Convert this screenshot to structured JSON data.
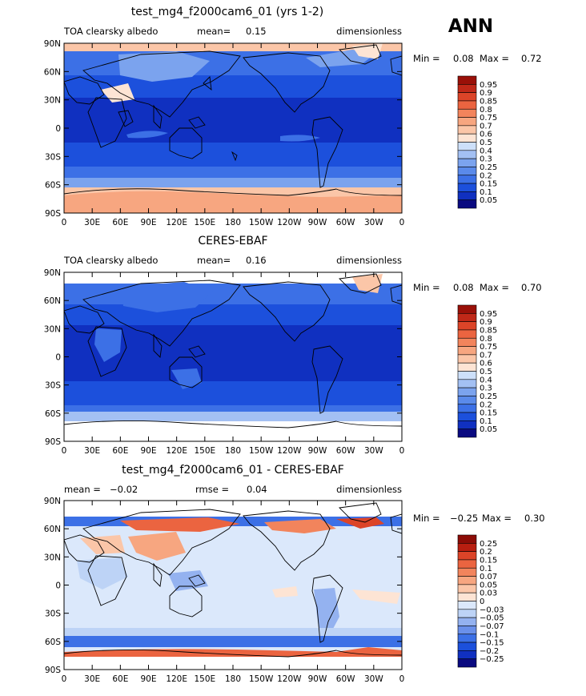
{
  "season": "ANN",
  "axes": {
    "lat_ticks": [
      "90N",
      "60N",
      "30N",
      "0",
      "30S",
      "60S",
      "90S"
    ],
    "lon_ticks": [
      "0",
      "30E",
      "60E",
      "90E",
      "120E",
      "150E",
      "180",
      "150W",
      "120W",
      "90W",
      "60W",
      "30W",
      "0"
    ]
  },
  "palettes": {
    "field": [
      "#0a0a80",
      "#1030c0",
      "#1c50dc",
      "#3c70e6",
      "#5a8aea",
      "#7ba3ee",
      "#a3c0f3",
      "#cde0fa",
      "#fde4d4",
      "#fbc6a8",
      "#f7a680",
      "#f2845c",
      "#eb6440",
      "#dc4428",
      "#c02818",
      "#9a1008"
    ],
    "diff": [
      "#0a0a80",
      "#1030c0",
      "#1c50dc",
      "#3c70e6",
      "#6a90ea",
      "#94b2f0",
      "#bdd3f6",
      "#dbe8fb",
      "#fde4d4",
      "#fbc6a8",
      "#f7a680",
      "#f2845c",
      "#eb6440",
      "#dc4428",
      "#b81e10",
      "#8c0c06"
    ]
  },
  "chart_data": [
    {
      "type": "heatmap",
      "title": "test_mg4_f2000cam6_01 (yrs 1-2)",
      "left_label": "TOA clearsky albedo",
      "center_label": "mean=",
      "center_value": "0.15",
      "right_label": "dimensionless",
      "min_label": "Min =",
      "min_value": "0.08",
      "max_label": "Max =",
      "max_value": "0.72",
      "palette": "field",
      "colorbar_levels": [
        "0.95",
        "0.9",
        "0.85",
        "0.8",
        "0.75",
        "0.7",
        "0.6",
        "0.5",
        "0.4",
        "0.3",
        "0.25",
        "0.2",
        "0.15",
        "0.1",
        "0.05"
      ]
    },
    {
      "type": "heatmap",
      "title": "CERES-EBAF",
      "left_label": "TOA clearsky albedo",
      "center_label": "mean=",
      "center_value": "0.16",
      "right_label": "dimensionless",
      "min_label": "Min =",
      "min_value": "0.08",
      "max_label": "Max =",
      "max_value": "0.70",
      "palette": "field",
      "colorbar_levels": [
        "0.95",
        "0.9",
        "0.85",
        "0.8",
        "0.75",
        "0.7",
        "0.6",
        "0.5",
        "0.4",
        "0.3",
        "0.25",
        "0.2",
        "0.15",
        "0.1",
        "0.05"
      ]
    },
    {
      "type": "heatmap",
      "title": "test_mg4_f2000cam6_01 - CERES-EBAF",
      "left_label": "mean =",
      "left_value": "−0.02",
      "center_label": "rmse =",
      "center_value": "0.04",
      "right_label": "dimensionless",
      "min_label": "Min =",
      "min_value": "−0.25",
      "max_label": "Max =",
      "max_value": "0.30",
      "palette": "diff",
      "colorbar_levels": [
        "0.25",
        "0.2",
        "0.15",
        "0.1",
        "0.07",
        "0.05",
        "0.03",
        "0",
        "−0.03",
        "−0.05",
        "−0.07",
        "−0.1",
        "−0.15",
        "−0.2",
        "−0.25"
      ]
    }
  ]
}
